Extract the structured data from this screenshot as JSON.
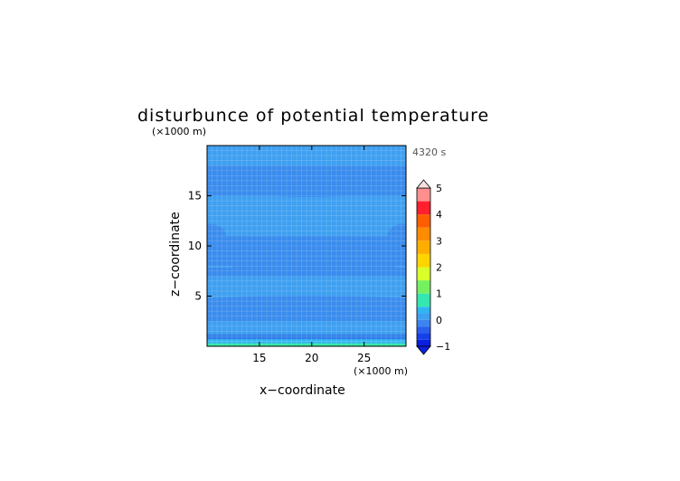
{
  "chart_data": {
    "type": "heatmap",
    "title": "disturbunce of potential temperature",
    "time_label": "4320 s",
    "xlabel": "x−coordinate",
    "ylabel": "z−coordinate",
    "x_unit": "(×1000 m)",
    "y_unit": "(×1000 m)",
    "xlim": [
      10,
      29
    ],
    "ylim": [
      0,
      20
    ],
    "x_ticks": [
      15,
      20,
      25
    ],
    "y_ticks": [
      5,
      10,
      15
    ],
    "grid": true,
    "colorbar": {
      "placement": "right",
      "ticks": [
        -1,
        0,
        1,
        2,
        3,
        4,
        5
      ],
      "tick_labels": [
        "−1",
        "0",
        "1",
        "2",
        "3",
        "4",
        "5"
      ],
      "levels": [
        {
          "from": -1.0,
          "to": -0.75,
          "color": "#0a1fe0"
        },
        {
          "from": -0.75,
          "to": -0.5,
          "color": "#1640e8"
        },
        {
          "from": -0.5,
          "to": -0.25,
          "color": "#2860ec"
        },
        {
          "from": -0.25,
          "to": 0.0,
          "color": "#3d84ee"
        },
        {
          "from": 0.0,
          "to": 0.25,
          "color": "#3f9ff0"
        },
        {
          "from": 0.25,
          "to": 0.5,
          "color": "#2fb6f0"
        },
        {
          "from": 0.5,
          "to": 1.0,
          "color": "#34e6b0"
        },
        {
          "from": 1.0,
          "to": 1.5,
          "color": "#74f060"
        },
        {
          "from": 1.5,
          "to": 2.0,
          "color": "#d8ff2a"
        },
        {
          "from": 2.0,
          "to": 2.5,
          "color": "#ffd400"
        },
        {
          "from": 2.5,
          "to": 3.0,
          "color": "#ffae00"
        },
        {
          "from": 3.0,
          "to": 3.5,
          "color": "#ff8c00"
        },
        {
          "from": 3.5,
          "to": 4.0,
          "color": "#ff5e00"
        },
        {
          "from": 4.0,
          "to": 4.5,
          "color": "#ff1f2e"
        },
        {
          "from": 4.5,
          "to": 5.0,
          "color": "#ff8f8f"
        },
        {
          "from": 5.0,
          "to": 5.5,
          "color": "#ffb4b4"
        }
      ],
      "under_color": "#0a1fe0",
      "over_color": "#f6e0e0"
    },
    "bands": [
      {
        "z": [
          0.0,
          0.3
        ],
        "value": 0.8,
        "color": "#36e8a8"
      },
      {
        "z": [
          0.3,
          0.7
        ],
        "value": 0.3,
        "color": "#33b6f2"
      },
      {
        "z": [
          0.7,
          1.2
        ],
        "value": -0.3,
        "color": "#2f7ee8"
      },
      {
        "z": [
          1.2,
          2.5
        ],
        "value": 0.1,
        "color": "#3f9ff0"
      },
      {
        "z": [
          2.5,
          4.0
        ],
        "value": -0.15,
        "color": "#3a8ced"
      },
      {
        "z": [
          4.0,
          4.6
        ],
        "value": -0.3,
        "color": "#2f7ee8"
      },
      {
        "z": [
          4.6,
          8.0
        ],
        "value": 0.1,
        "color": "#3f9ff0"
      },
      {
        "z": [
          8.0,
          11.0
        ],
        "value": -0.15,
        "color": "#3a8ced"
      },
      {
        "z": [
          11.0,
          15.0
        ],
        "value": 0.1,
        "color": "#3f9ff0"
      },
      {
        "z": [
          15.0,
          18.0
        ],
        "value": -0.15,
        "color": "#3a8ced"
      },
      {
        "z": [
          18.0,
          20.0
        ],
        "value": 0.1,
        "color": "#3f9ff0"
      }
    ],
    "side_lobes": [
      {
        "center": [
          10.2,
          11.0
        ],
        "radius": [
          1.6,
          1.2
        ],
        "value": -0.15
      },
      {
        "center": [
          28.8,
          11.0
        ],
        "radius": [
          1.6,
          1.2
        ],
        "value": -0.15
      }
    ]
  }
}
